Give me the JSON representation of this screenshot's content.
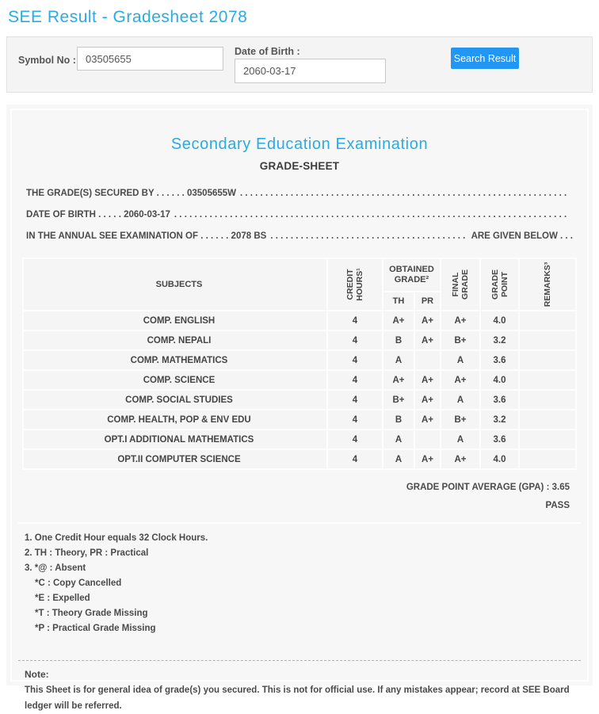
{
  "page": {
    "title": "SEE Result - Gradesheet 2078"
  },
  "search": {
    "symbol_label": "Symbol No :",
    "symbol_value": "03505655",
    "dob_label": "Date of Birth :",
    "dob_value": "2060-03-17",
    "button_label": "Search Result"
  },
  "sheet": {
    "exam_title": "Secondary Education Examination",
    "subtitle": "GRADE-SHEET",
    "intro": {
      "line1_left": "THE GRADE(S) SECURED BY . . . . . . 03505655W",
      "line1_dots": ". . . . . . . . . . . . . . . . . . . . . . . . . . . . . . . . . . . . . . . . . . . . . . . . . . . . . . . . . . . . . . . . . . . . . . . . . . . . . . . . . . . . . . . . . . . .",
      "line1_right": "",
      "line2_left": "DATE OF BIRTH . . . . . 2060-03-17",
      "line2_dots": ". . . . . . . . . . . . . . . . . . . . . . . . . . . . . . . . . . . . . . . . . . . . . . . . . . . . . . . . . . . . . . . . . . . . . . . . . . . . . . . . . . . . . . . . . . . .",
      "line2_right": "",
      "line3_left": "IN THE ANNUAL SEE EXAMINATION OF . . . . . . 2078 BS",
      "line3_dots": ". . . . . . . . . . . . . . . . . . . . . . . . . . . . . . . . . . . . . . . . . . . . . . . . . . . . . . . . . . . . . . . . . . . .",
      "line3_right": "ARE GIVEN BELOW . . ."
    },
    "table": {
      "header": {
        "subjects": "SUBJECTS",
        "credit_lines": [
          "CREDIT",
          "HOURS¹"
        ],
        "obtained_lines": [
          "OBTAINED",
          "GRADE²"
        ],
        "th": "TH",
        "pr": "PR",
        "final_lines": [
          "FINAL",
          "GRADE"
        ],
        "gpoint_lines": [
          "GRADE",
          "POINT"
        ],
        "remarks_lines": [
          "REMARKS³"
        ]
      },
      "rows": [
        {
          "subject": "COMP. ENGLISH",
          "credit": "4",
          "th": "A+",
          "pr": "A+",
          "final": "A+",
          "gp": "4.0",
          "remarks": ""
        },
        {
          "subject": "COMP. NEPALI",
          "credit": "4",
          "th": "B",
          "pr": "A+",
          "final": "B+",
          "gp": "3.2",
          "remarks": ""
        },
        {
          "subject": "COMP. MATHEMATICS",
          "credit": "4",
          "th": "A",
          "pr": "",
          "final": "A",
          "gp": "3.6",
          "remarks": ""
        },
        {
          "subject": "COMP. SCIENCE",
          "credit": "4",
          "th": "A+",
          "pr": "A+",
          "final": "A+",
          "gp": "4.0",
          "remarks": ""
        },
        {
          "subject": "COMP. SOCIAL STUDIES",
          "credit": "4",
          "th": "B+",
          "pr": "A+",
          "final": "A",
          "gp": "3.6",
          "remarks": ""
        },
        {
          "subject": "COMP. HEALTH, POP & ENV EDU",
          "credit": "4",
          "th": "B",
          "pr": "A+",
          "final": "B+",
          "gp": "3.2",
          "remarks": ""
        },
        {
          "subject": "OPT.I ADDITIONAL MATHEMATICS",
          "credit": "4",
          "th": "A",
          "pr": "",
          "final": "A",
          "gp": "3.6",
          "remarks": ""
        },
        {
          "subject": "OPT.II COMPUTER SCIENCE",
          "credit": "4",
          "th": "A",
          "pr": "A+",
          "final": "A+",
          "gp": "4.0",
          "remarks": ""
        }
      ]
    },
    "summary": {
      "gpa_line": "GRADE POINT AVERAGE (GPA) : 3.65",
      "result": "PASS"
    },
    "footnotes": [
      {
        "text": "1. One Credit Hour equals 32 Clock Hours."
      },
      {
        "text": "2. TH : Theory, PR : Practical"
      },
      {
        "text": "3. *@ : Absent"
      },
      {
        "text": "*C : Copy Cancelled"
      },
      {
        "text": "*E : Expelled"
      },
      {
        "text": "*T : Theory Grade Missing"
      },
      {
        "text": "*P : Practical Grade Missing"
      }
    ],
    "note": {
      "label": "Note:",
      "text": "This Sheet is for general idea of grade(s) you secured. This is not for official use. If any mistakes appear; record at SEE Board ledger will be referred."
    }
  },
  "colors": {
    "accent": "#2aabe2",
    "button_blue": "#2196f3"
  }
}
